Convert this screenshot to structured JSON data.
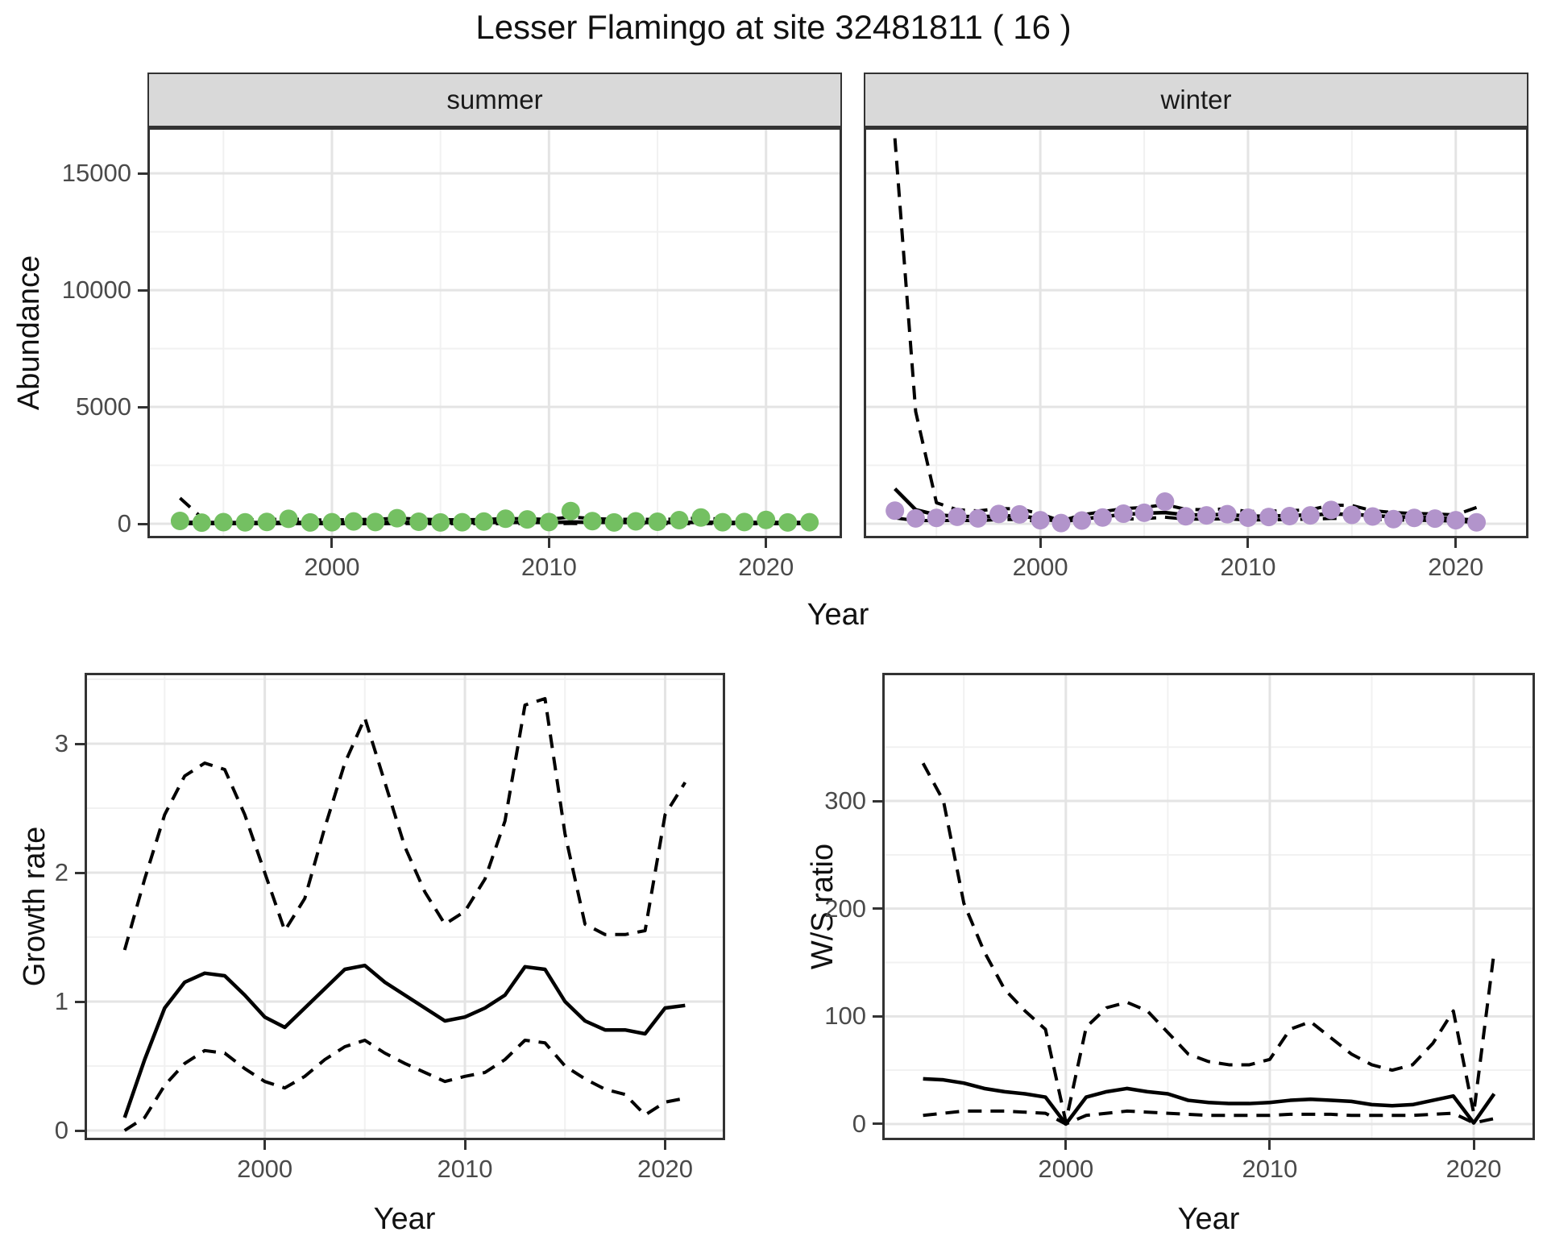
{
  "title": "Lesser Flamingo at site 32481811 ( 16 )",
  "labels": {
    "abundance": "Abundance",
    "year": "Year",
    "growth": "Growth rate",
    "ws": "W/S ratio"
  },
  "colors": {
    "summer_point": "#74c062",
    "winter_point": "#b294cb",
    "line": "#000000",
    "grid_major": "#e4e4e4",
    "grid_minor": "#f1f1f1",
    "panel_border": "#333333",
    "strip_bg": "#d9d9d9",
    "tick_text": "#4a4a4a"
  },
  "chart_data": [
    {
      "type": "scatter",
      "facet": "summer",
      "xlabel": "Year",
      "ylabel": "Abundance",
      "xlim": [
        1991.5,
        2023.5
      ],
      "ylim": [
        -620,
        16970
      ],
      "xticks": [
        2000,
        2010,
        2020
      ],
      "xminor": [
        1995,
        2005,
        2015
      ],
      "yticks": [
        0,
        5000,
        10000,
        15000
      ],
      "yminor": [
        2500,
        7500,
        12500
      ],
      "years": [
        1993,
        1994,
        1995,
        1996,
        1997,
        1998,
        1999,
        2000,
        2001,
        2002,
        2003,
        2004,
        2005,
        2006,
        2007,
        2008,
        2009,
        2010,
        2011,
        2012,
        2013,
        2014,
        2015,
        2016,
        2017,
        2018,
        2019,
        2020,
        2021,
        2022
      ],
      "points": [
        120,
        50,
        70,
        60,
        80,
        210,
        55,
        65,
        100,
        75,
        240,
        85,
        55,
        65,
        95,
        215,
        185,
        75,
        545,
        115,
        55,
        105,
        85,
        155,
        270,
        65,
        75,
        165,
        55,
        65
      ],
      "median": [
        60,
        55,
        52,
        50,
        52,
        56,
        50,
        50,
        53,
        55,
        62,
        58,
        54,
        52,
        56,
        62,
        64,
        58,
        72,
        66,
        60,
        58,
        55,
        58,
        64,
        58,
        55,
        58,
        54,
        55
      ],
      "lower": [
        8,
        6,
        6,
        5,
        6,
        8,
        5,
        5,
        6,
        6,
        9,
        7,
        6,
        5,
        6,
        8,
        8,
        6,
        12,
        9,
        7,
        7,
        6,
        7,
        9,
        6,
        6,
        7,
        5,
        6
      ],
      "upper": [
        1100,
        260,
        190,
        165,
        175,
        215,
        165,
        165,
        180,
        190,
        240,
        200,
        175,
        170,
        185,
        225,
        215,
        190,
        290,
        225,
        190,
        195,
        185,
        205,
        250,
        195,
        185,
        210,
        180,
        190
      ]
    },
    {
      "type": "scatter",
      "facet": "winter",
      "xlabel": "Year",
      "ylabel": "Abundance",
      "xlim": [
        1991.5,
        2023.5
      ],
      "ylim": [
        -620,
        16970
      ],
      "xticks": [
        2000,
        2010,
        2020
      ],
      "xminor": [
        1995,
        2005,
        2015
      ],
      "yticks": [
        0,
        5000,
        10000,
        15000
      ],
      "yminor": [
        2500,
        7500,
        12500
      ],
      "years": [
        1993,
        1994,
        1995,
        1996,
        1997,
        1998,
        1999,
        2000,
        2001,
        2002,
        2003,
        2004,
        2005,
        2006,
        2007,
        2008,
        2009,
        2010,
        2011,
        2012,
        2013,
        2014,
        2015,
        2016,
        2017,
        2018,
        2019,
        2020,
        2021
      ],
      "points": [
        560,
        230,
        250,
        300,
        230,
        420,
        400,
        150,
        30,
        140,
        270,
        430,
        470,
        950,
        320,
        360,
        410,
        260,
        290,
        330,
        360,
        590,
        380,
        310,
        200,
        250,
        220,
        150,
        60
      ],
      "median": [
        1500,
        600,
        380,
        320,
        300,
        330,
        340,
        220,
        90,
        200,
        300,
        400,
        450,
        480,
        380,
        380,
        400,
        320,
        330,
        350,
        380,
        420,
        400,
        350,
        300,
        280,
        260,
        200,
        160
      ],
      "lower": [
        250,
        140,
        130,
        150,
        130,
        180,
        180,
        100,
        10,
        90,
        150,
        200,
        220,
        280,
        200,
        200,
        210,
        160,
        170,
        180,
        200,
        230,
        220,
        190,
        160,
        150,
        140,
        110,
        60
      ],
      "upper": [
        16500,
        4800,
        900,
        600,
        550,
        650,
        640,
        420,
        120,
        380,
        520,
        650,
        700,
        820,
        620,
        600,
        640,
        520,
        540,
        560,
        600,
        800,
        780,
        560,
        480,
        440,
        420,
        380,
        700
      ]
    },
    {
      "type": "line",
      "facet": "",
      "xlabel": "Year",
      "ylabel": "Growth rate",
      "xlim": [
        1991,
        2023
      ],
      "ylim": [
        -0.075,
        3.55
      ],
      "xticks": [
        2000,
        2010,
        2020
      ],
      "xminor": [
        1995,
        2005,
        2015
      ],
      "yticks": [
        0,
        1,
        2,
        3
      ],
      "yminor": [
        0.5,
        1.5,
        2.5,
        3.5
      ],
      "years": [
        1993,
        1994,
        1995,
        1996,
        1997,
        1998,
        1999,
        2000,
        2001,
        2002,
        2003,
        2004,
        2005,
        2006,
        2007,
        2008,
        2009,
        2010,
        2011,
        2012,
        2013,
        2014,
        2015,
        2016,
        2017,
        2018,
        2019,
        2020,
        2021
      ],
      "points": [],
      "median": [
        0.1,
        0.55,
        0.95,
        1.15,
        1.22,
        1.2,
        1.05,
        0.88,
        0.8,
        0.95,
        1.1,
        1.25,
        1.28,
        1.15,
        1.05,
        0.95,
        0.85,
        0.88,
        0.95,
        1.05,
        1.27,
        1.25,
        1.0,
        0.85,
        0.78,
        0.78,
        0.75,
        0.95,
        0.97
      ],
      "lower": [
        0.0,
        0.1,
        0.35,
        0.52,
        0.62,
        0.6,
        0.48,
        0.38,
        0.33,
        0.42,
        0.55,
        0.65,
        0.7,
        0.6,
        0.52,
        0.45,
        0.38,
        0.42,
        0.45,
        0.55,
        0.7,
        0.68,
        0.5,
        0.4,
        0.32,
        0.28,
        0.12,
        0.22,
        0.25
      ],
      "upper": [
        1.4,
        1.95,
        2.45,
        2.75,
        2.85,
        2.8,
        2.45,
        2.0,
        1.55,
        1.8,
        2.35,
        2.85,
        3.2,
        2.7,
        2.2,
        1.85,
        1.6,
        1.7,
        1.95,
        2.4,
        3.3,
        3.35,
        2.3,
        1.6,
        1.52,
        1.52,
        1.55,
        2.45,
        2.7
      ]
    },
    {
      "type": "line",
      "facet": "",
      "xlabel": "Year",
      "ylabel": "W/S ratio",
      "xlim": [
        1991,
        2023
      ],
      "ylim": [
        -15,
        419
      ],
      "xticks": [
        2000,
        2010,
        2020
      ],
      "xminor": [
        1995,
        2005,
        2015
      ],
      "yticks": [
        0,
        100,
        200,
        300
      ],
      "yminor": [
        50,
        150,
        250,
        350
      ],
      "years": [
        1993,
        1994,
        1995,
        1996,
        1997,
        1998,
        1999,
        2000,
        2001,
        2002,
        2003,
        2004,
        2005,
        2006,
        2007,
        2008,
        2009,
        2010,
        2011,
        2012,
        2013,
        2014,
        2015,
        2016,
        2017,
        2018,
        2019,
        2020,
        2021
      ],
      "points": [],
      "median": [
        42,
        41,
        38,
        33,
        30,
        28,
        25,
        0,
        25,
        30,
        33,
        30,
        28,
        22,
        20,
        19,
        19,
        20,
        22,
        23,
        22,
        21,
        18,
        17,
        18,
        22,
        26,
        1,
        28
      ],
      "lower": [
        8,
        10,
        12,
        12,
        12,
        11,
        10,
        0,
        8,
        10,
        12,
        11,
        10,
        9,
        8,
        8,
        8,
        8,
        9,
        9,
        9,
        8,
        8,
        8,
        8,
        9,
        10,
        1,
        5
      ],
      "upper": [
        335,
        300,
        205,
        160,
        125,
        105,
        88,
        2,
        90,
        108,
        113,
        105,
        85,
        65,
        58,
        55,
        55,
        60,
        88,
        95,
        80,
        65,
        55,
        50,
        55,
        75,
        105,
        10,
        160
      ]
    }
  ]
}
